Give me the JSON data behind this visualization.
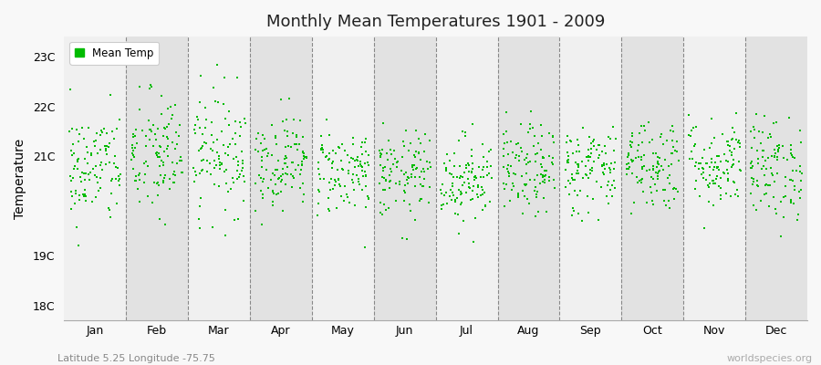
{
  "title": "Monthly Mean Temperatures 1901 - 2009",
  "ylabel": "Temperature",
  "subtitle": "Latitude 5.25 Longitude -75.75",
  "watermark": "worldspecies.org",
  "months": [
    "Jan",
    "Feb",
    "Mar",
    "Apr",
    "May",
    "Jun",
    "Jul",
    "Aug",
    "Sep",
    "Oct",
    "Nov",
    "Dec"
  ],
  "ylim": [
    17.7,
    23.4
  ],
  "yticks": [
    18,
    19,
    20,
    21,
    22,
    23
  ],
  "ytick_labels": [
    "18C",
    "19C",
    "",
    "21C",
    "22C",
    "23C"
  ],
  "dot_color": "#00bb00",
  "dot_size": 3,
  "bg_color_light": "#f0f0f0",
  "bg_color_dark": "#e2e2e2",
  "fig_bg_color": "#f8f8f8",
  "n_years": 109,
  "seed": 42,
  "monthly_means": [
    20.75,
    21.0,
    21.1,
    20.9,
    20.7,
    20.6,
    20.55,
    20.7,
    20.75,
    20.85,
    20.85,
    20.75
  ],
  "monthly_stds": [
    0.58,
    0.65,
    0.62,
    0.48,
    0.44,
    0.44,
    0.44,
    0.46,
    0.46,
    0.47,
    0.46,
    0.52
  ]
}
